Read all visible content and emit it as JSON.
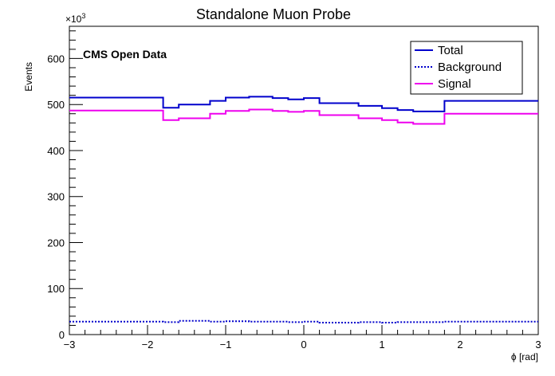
{
  "chart_data": {
    "type": "line",
    "title": "Standalone Muon Probe",
    "xlabel": "ϕ [rad]",
    "ylabel": "Events",
    "y_multiplier": "×10",
    "y_multiplier_exp": "3",
    "annotation": "CMS Open Data",
    "xlim": [
      -3,
      3
    ],
    "ylim": [
      0,
      670
    ],
    "x_ticks": [
      -3,
      -2,
      -1,
      0,
      1,
      2,
      3
    ],
    "x_tick_labels": [
      "−3",
      "−2",
      "−1",
      "0",
      "1",
      "2",
      "3"
    ],
    "y_ticks": [
      0,
      100,
      200,
      300,
      400,
      500,
      600
    ],
    "y_tick_labels": [
      "0",
      "100",
      "200",
      "300",
      "400",
      "500",
      "600"
    ],
    "bin_edges": [
      -3.0,
      -1.8,
      -1.6,
      -1.2,
      -1.0,
      -0.7,
      -0.4,
      -0.2,
      0.0,
      0.2,
      0.7,
      1.0,
      1.2,
      1.4,
      1.8,
      3.0
    ],
    "series": [
      {
        "name": "Total",
        "color": "#0000cc",
        "style": "solid",
        "values": [
          515,
          493,
          500,
          508,
          515,
          517,
          514,
          511,
          514,
          503,
          497,
          492,
          488,
          485,
          508
        ]
      },
      {
        "name": "Background",
        "color": "#0000cc",
        "style": "dotted",
        "values": [
          28,
          27,
          30,
          28,
          29,
          28,
          28,
          27,
          28,
          26,
          27,
          26,
          27,
          27,
          28
        ]
      },
      {
        "name": "Signal",
        "color": "#ee00ee",
        "style": "solid",
        "values": [
          487,
          466,
          470,
          480,
          486,
          489,
          486,
          484,
          486,
          477,
          470,
          466,
          461,
          458,
          480
        ]
      }
    ],
    "legend_position": "top-right",
    "grid": false
  }
}
